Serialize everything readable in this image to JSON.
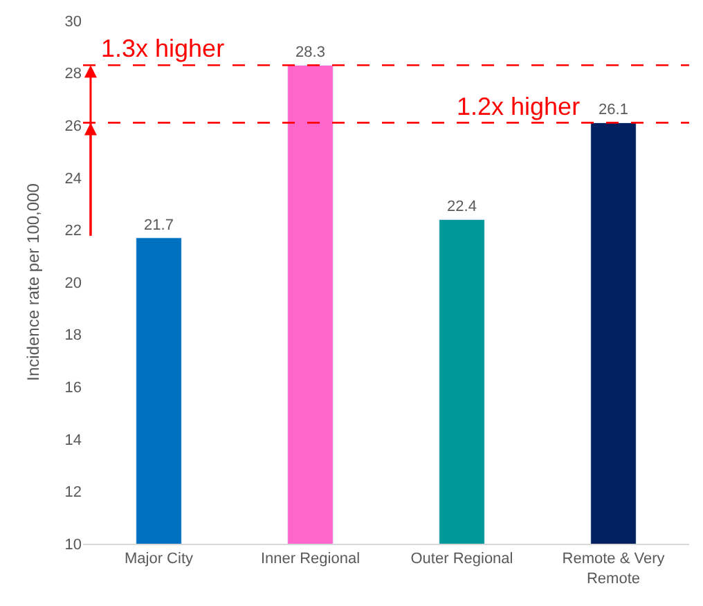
{
  "chart_data": {
    "type": "bar",
    "ylabel": "Incidence rate per 100,000",
    "categories": [
      "Major City",
      "Inner Regional",
      "Outer Regional",
      "Remote & Very Remote"
    ],
    "values": [
      21.7,
      28.3,
      22.4,
      26.1
    ],
    "colors": [
      "#0070c0",
      "#ff66cc",
      "#009999",
      "#002060"
    ],
    "ylim": [
      10,
      30
    ],
    "yticks": [
      10,
      12,
      14,
      16,
      18,
      20,
      22,
      24,
      26,
      28,
      30
    ],
    "legend": false,
    "data_labels": true,
    "ref_lines": [
      {
        "axis": "y",
        "value": 28.3,
        "color": "#ff0000",
        "line_style": "dashed"
      },
      {
        "axis": "y",
        "value": 26.1,
        "color": "#ff0000",
        "line_style": "dashed"
      }
    ],
    "annotations": [
      {
        "text": "1.3x higher",
        "x": "Major City",
        "y": 28.3
      },
      {
        "text": "1.2x higher",
        "x": "Remote & Very Remote",
        "y": 26.1
      }
    ]
  }
}
